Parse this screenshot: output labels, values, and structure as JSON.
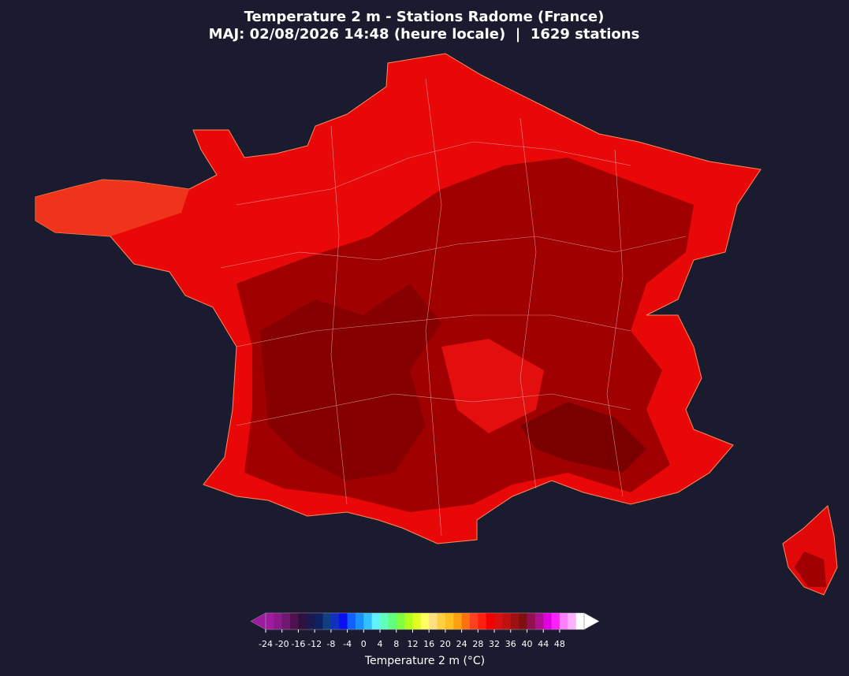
{
  "title": "Temperature 2 m - Stations Radome (France)",
  "subtitle": "MAJ: 02/08/2026 14:48 (heure locale)  |  1629 stations",
  "colorbar": {
    "label": "Temperature 2 m (°C)",
    "lim": [
      -24,
      54
    ],
    "ticks": [
      -24,
      -20,
      -16,
      -12,
      -8,
      -4,
      0,
      4,
      8,
      12,
      16,
      20,
      24,
      28,
      32,
      36,
      40,
      44,
      48
    ],
    "colors": [
      "#a01aa0",
      "#8a1a8a",
      "#701870",
      "#501050",
      "#301040",
      "#1a1a50",
      "#102060",
      "#104080",
      "#1030c0",
      "#0a10f0",
      "#1060ff",
      "#1a90ff",
      "#30c0ff",
      "#60f0ff",
      "#60ffc0",
      "#60ff80",
      "#80ff40",
      "#b0ff20",
      "#e0ff20",
      "#ffff60",
      "#ffe080",
      "#ffd040",
      "#ffc020",
      "#ffa010",
      "#ff7010",
      "#ff4020",
      "#ff2010",
      "#f00000",
      "#d81010",
      "#c01010",
      "#a01010",
      "#801010",
      "#901050",
      "#b01090",
      "#e000e0",
      "#ff20ff",
      "#ff80ff",
      "#ffb0ff",
      "#ffffff"
    ]
  }
}
